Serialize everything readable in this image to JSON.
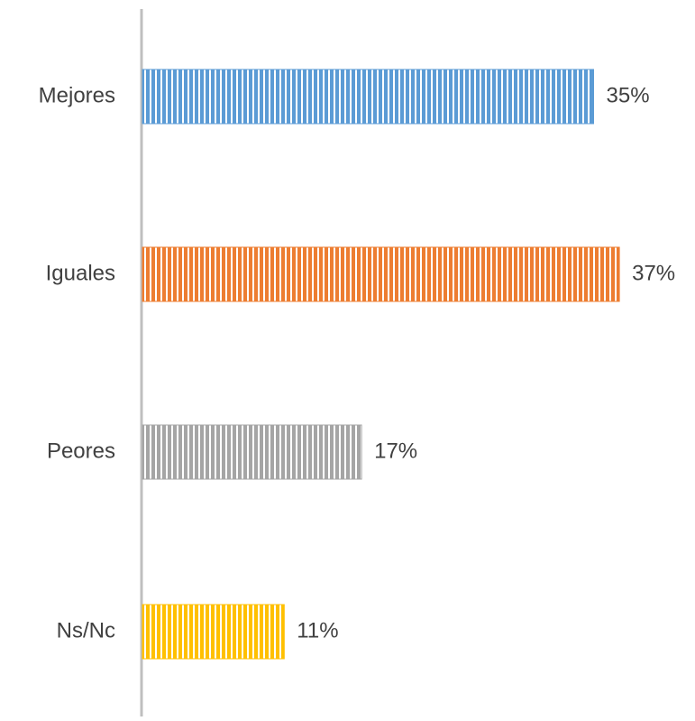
{
  "chart_data": {
    "type": "bar",
    "orientation": "horizontal",
    "categories": [
      "Mejores",
      "Iguales",
      "Peores",
      "Ns/Nc"
    ],
    "values": [
      35,
      37,
      17,
      11
    ],
    "value_labels": [
      "35%",
      "37%",
      "17%",
      "11%"
    ],
    "colors": [
      "#5b9bd5",
      "#ed7d31",
      "#a5a5a5",
      "#ffc000"
    ],
    "pattern": "vertical-stripes"
  }
}
